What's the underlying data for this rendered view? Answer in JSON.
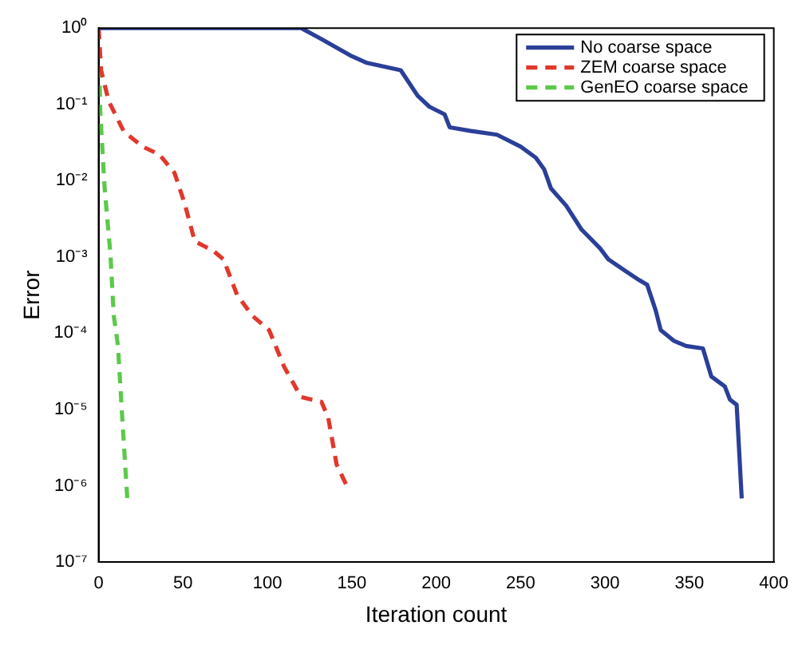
{
  "chart_data": {
    "type": "line",
    "xlabel": "Iteration count",
    "ylabel": "Error",
    "log": "y",
    "grid": false,
    "legend": "top right",
    "marker": "none",
    "xlim": [
      0,
      400
    ],
    "xticks": [
      0,
      50,
      100,
      150,
      200,
      250,
      300,
      350,
      400
    ],
    "ylim": [
      1e-07,
      1
    ],
    "yticks": [
      {
        "value": 1e-07,
        "label": "10⁻⁷"
      },
      {
        "value": 1e-06,
        "label": "10⁻⁶"
      },
      {
        "value": 1e-05,
        "label": "10⁻⁵"
      },
      {
        "value": 0.0001,
        "label": "10⁻⁴"
      },
      {
        "value": 0.001,
        "label": "10⁻³"
      },
      {
        "value": 0.01,
        "label": "10⁻²"
      },
      {
        "value": 0.1,
        "label": "10⁻¹"
      },
      {
        "value": 1,
        "label": "10⁰"
      }
    ],
    "series": [
      {
        "name": "No coarse space",
        "color": "#2b3f99",
        "line_style": "solid",
        "x": [
          0,
          120,
          131,
          149,
          159,
          179,
          189,
          196,
          205,
          208,
          220,
          236,
          250,
          259,
          264,
          268,
          277,
          286,
          297,
          302,
          311,
          320,
          325,
          330,
          333,
          341,
          348,
          358,
          363,
          371,
          374,
          378,
          381
        ],
        "values": [
          1,
          1,
          0.74,
          0.44,
          0.35,
          0.28,
          0.13,
          0.093,
          0.074,
          0.05,
          0.045,
          0.04,
          0.028,
          0.02,
          0.014,
          0.0079,
          0.0047,
          0.0023,
          0.0013,
          0.00093,
          0.00068,
          0.0005,
          0.00043,
          0.0002,
          0.00011,
          7.9e-05,
          6.8e-05,
          6.3e-05,
          2.7e-05,
          2e-05,
          1.35e-05,
          1.15e-05,
          6.8e-07
        ]
      },
      {
        "name": "ZEM coarse space",
        "color": "#e0382b",
        "line_style": "dashed",
        "x": [
          0,
          1.5,
          6,
          15,
          26,
          36,
          45,
          51,
          57,
          68,
          74,
          82,
          91,
          101,
          110,
          120,
          132,
          136,
          141,
          147
        ],
        "values": [
          1,
          0.28,
          0.11,
          0.044,
          0.028,
          0.022,
          0.0126,
          0.005,
          0.0016,
          0.0012,
          0.00093,
          0.00032,
          0.00017,
          0.00011,
          3.6e-05,
          1.45e-05,
          1.26e-05,
          7.9e-06,
          1.9e-06,
          1e-06
        ]
      },
      {
        "name": "GenEO coarse space",
        "color": "#5cc94a",
        "line_style": "dashed",
        "x": [
          0,
          1,
          3.6,
          7,
          9,
          11.5,
          14,
          17
        ],
        "values": [
          1,
          0.079,
          0.0079,
          0.0011,
          0.00017,
          6.8e-05,
          7.9e-06,
          6.8e-07
        ]
      }
    ]
  }
}
